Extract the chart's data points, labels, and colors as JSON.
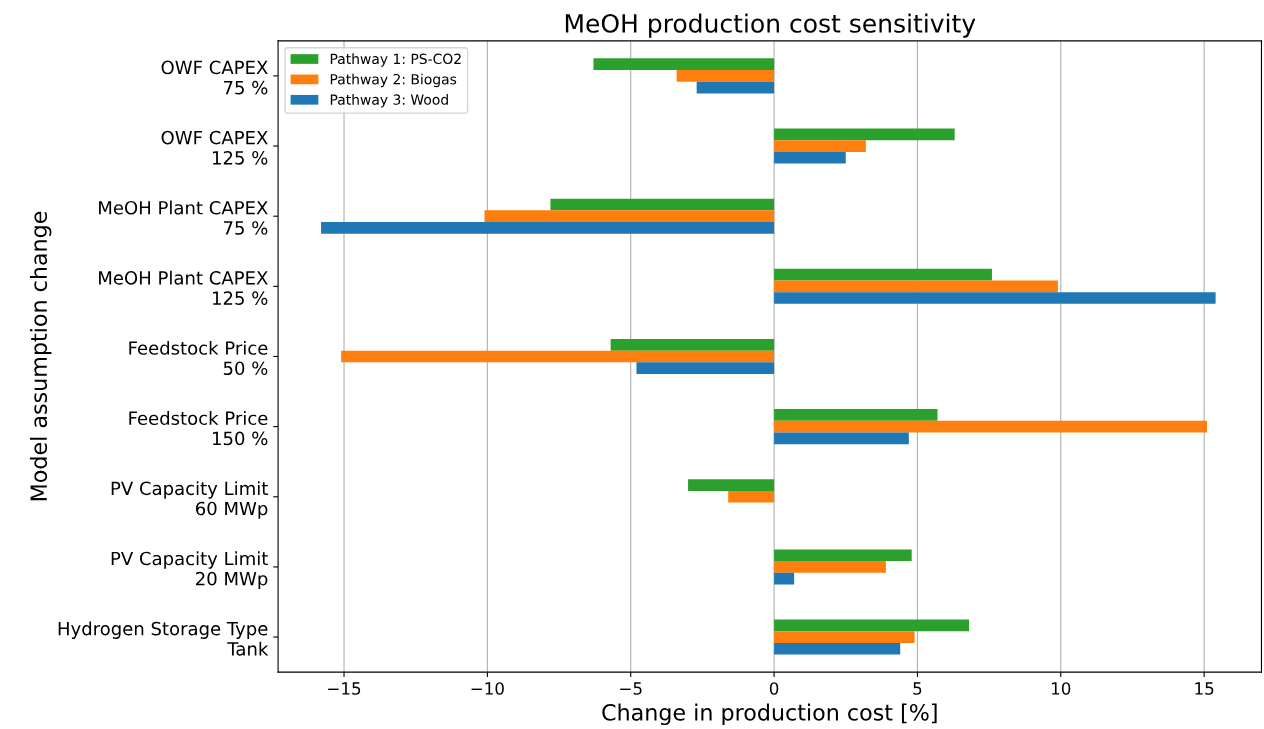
{
  "chart_data": {
    "type": "bar",
    "orientation": "horizontal",
    "title": "MeOH production cost sensitivity",
    "xlabel": "Change in production cost [%]",
    "ylabel": "Model assumption change",
    "categories": [
      "OWF CAPEX\n75 %",
      "OWF CAPEX\n125 %",
      "MeOH Plant CAPEX\n75 %",
      "MeOH Plant CAPEX\n125 %",
      "Feedstock Price\n50 %",
      "Feedstock Price\n150 %",
      "PV Capacity Limit\n60 MWp",
      "PV Capacity Limit\n20 MWp",
      "Hydrogen Storage Type\nTank"
    ],
    "series": [
      {
        "name": "Pathway 1: PS-CO2",
        "color": "#2ca02c",
        "values": [
          -6.3,
          6.3,
          -7.8,
          7.6,
          -5.7,
          5.7,
          -3.0,
          4.8,
          6.8
        ]
      },
      {
        "name": "Pathway 2: Biogas",
        "color": "#ff7f0e",
        "values": [
          -3.4,
          3.2,
          -10.1,
          9.9,
          -15.1,
          15.1,
          -1.6,
          3.9,
          4.9
        ]
      },
      {
        "name": "Pathway 3: Wood",
        "color": "#1f77b4",
        "values": [
          -2.7,
          2.5,
          -15.8,
          15.4,
          -4.8,
          4.7,
          0,
          0.7,
          4.4
        ]
      }
    ],
    "xlim": [
      -17.3,
      17.0
    ],
    "xticks": [
      {
        "value": -15,
        "label": "−15"
      },
      {
        "value": -10,
        "label": "−10"
      },
      {
        "value": -5,
        "label": "−5"
      },
      0,
      5,
      10,
      15
    ],
    "grid": "x",
    "legend": "top left"
  }
}
